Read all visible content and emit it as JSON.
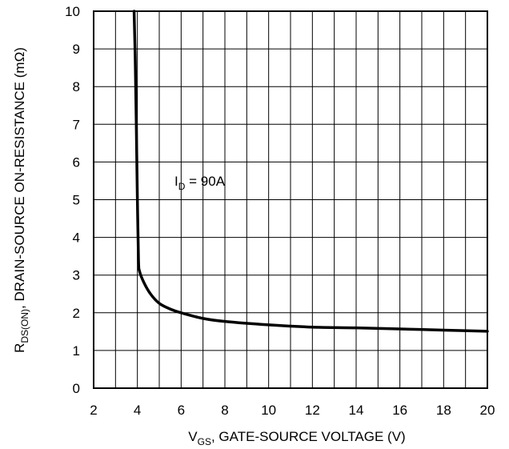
{
  "chart_data": {
    "type": "line",
    "xlabel": {
      "main": "V",
      "sub": "GS",
      "rest": ", GATE-SOURCE VOLTAGE (V)"
    },
    "ylabel": {
      "main": "R",
      "sub": "DS(ON)",
      "rest": ", DRAIN-SOURCE ON-RESISTANCE (mΩ)"
    },
    "xlim": [
      2,
      20
    ],
    "ylim": [
      0,
      10
    ],
    "xticks": [
      2,
      4,
      6,
      8,
      10,
      12,
      14,
      16,
      18,
      20
    ],
    "yticks": [
      0,
      1,
      2,
      3,
      4,
      5,
      6,
      7,
      8,
      9,
      10
    ],
    "x_tick_labels": [
      "2",
      "4",
      "6",
      "8",
      "10",
      "12",
      "14",
      "16",
      "18",
      "20"
    ],
    "y_tick_labels": [
      "0",
      "1",
      "2",
      "3",
      "4",
      "5",
      "6",
      "7",
      "8",
      "9",
      "10"
    ],
    "x_minor_step": 1,
    "grid": true,
    "annotation": {
      "main": "I",
      "sub": "D",
      "rest": " = 90A"
    },
    "series": [
      {
        "color": "#000000",
        "x": [
          3.85,
          3.9,
          3.95,
          4.0,
          4.05,
          4.1,
          4.3,
          4.6,
          5.0,
          5.5,
          6.0,
          7.0,
          8.0,
          10.0,
          12.0,
          14.0,
          16.0,
          18.0,
          20.0
        ],
        "y": [
          10.0,
          8.8,
          7.0,
          5.0,
          3.4,
          3.1,
          2.8,
          2.5,
          2.25,
          2.1,
          2.0,
          1.85,
          1.77,
          1.68,
          1.62,
          1.6,
          1.57,
          1.54,
          1.51
        ]
      }
    ]
  }
}
